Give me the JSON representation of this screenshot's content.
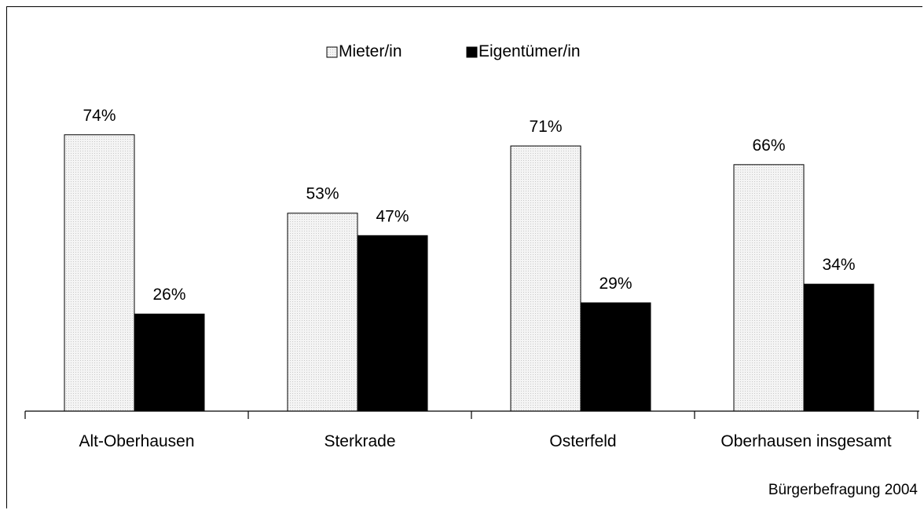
{
  "chart_data": {
    "type": "bar",
    "categories": [
      "Alt-Oberhausen",
      "Sterkrade",
      "Osterfeld",
      "Oberhausen insgesamt"
    ],
    "series": [
      {
        "name": "Mieter/in",
        "values": [
          74,
          53,
          71,
          66
        ],
        "color": "#eeeeee"
      },
      {
        "name": "Eigentümer/in",
        "values": [
          26,
          47,
          29,
          34
        ],
        "color": "#000000"
      }
    ],
    "value_suffix": "%",
    "ylim": [
      0,
      100
    ],
    "legend_position": "top-center",
    "grid": false,
    "source": "Bürgerbefragung 2004"
  }
}
